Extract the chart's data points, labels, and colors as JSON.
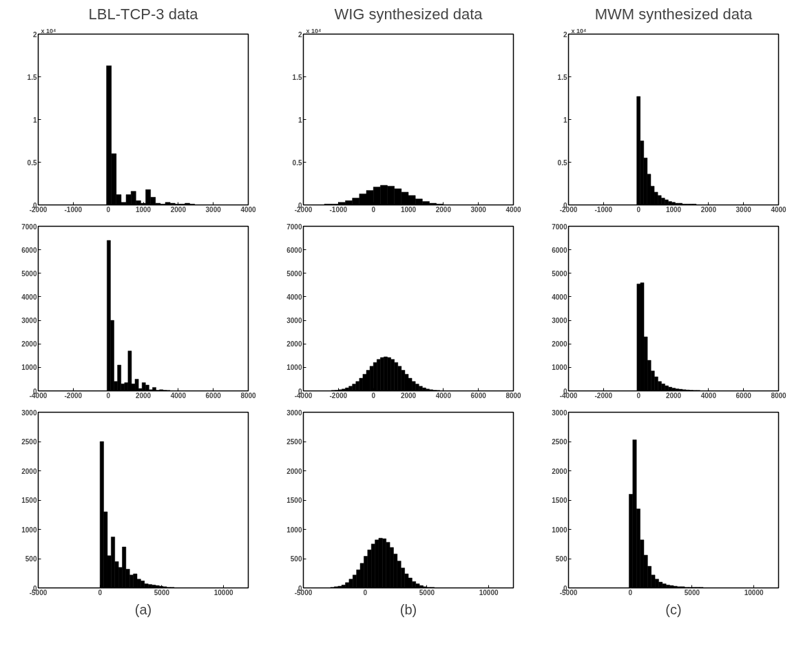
{
  "chart_data": [
    {
      "type": "histogram",
      "title": "LBL-TCP-3 data",
      "color": "#000000",
      "xlim": [
        -2000,
        4000
      ],
      "xticks": [
        -2000,
        -1000,
        0,
        1000,
        2000,
        3000,
        4000
      ],
      "ylim": [
        0,
        2
      ],
      "yticks": [
        0,
        0.5,
        1,
        1.5,
        2
      ],
      "annotations": [
        "x 10⁴"
      ],
      "bins": [
        -50,
        90,
        230,
        370,
        510,
        650,
        790,
        930,
        1070,
        1210,
        1350,
        1490,
        1630,
        1770,
        1910,
        2050,
        2190,
        2330,
        2470
      ],
      "values": [
        1.63,
        0.6,
        0.12,
        0.03,
        0.12,
        0.16,
        0.05,
        0.02,
        0.18,
        0.09,
        0.02,
        0.01,
        0.03,
        0.02,
        0.01,
        0.01,
        0.02,
        0.01
      ]
    },
    {
      "type": "histogram",
      "title": "WIG synthesized data",
      "color": "#000000",
      "xlim": [
        -2000,
        4000
      ],
      "xticks": [
        -2000,
        -1000,
        0,
        1000,
        2000,
        3000,
        4000
      ],
      "ylim": [
        0,
        2
      ],
      "yticks": [
        0,
        0.5,
        1,
        1.5,
        2
      ],
      "annotations": [
        "x 10⁴"
      ],
      "bins": [
        -1400,
        -1200,
        -1000,
        -800,
        -600,
        -400,
        -200,
        0,
        200,
        400,
        600,
        800,
        1000,
        1200,
        1400,
        1600,
        1800,
        2000,
        2200,
        2400
      ],
      "values": [
        0.01,
        0.01,
        0.03,
        0.05,
        0.08,
        0.13,
        0.17,
        0.21,
        0.23,
        0.22,
        0.19,
        0.15,
        0.11,
        0.07,
        0.04,
        0.02,
        0.01,
        0.0,
        0.0
      ]
    },
    {
      "type": "histogram",
      "title": "MWM synthesized data",
      "color": "#000000",
      "xlim": [
        -2000,
        4000
      ],
      "xticks": [
        -2000,
        -1000,
        0,
        1000,
        2000,
        3000,
        4000
      ],
      "ylim": [
        0,
        2
      ],
      "yticks": [
        0,
        0.5,
        1,
        1.5,
        2
      ],
      "annotations": [
        "x 10⁴"
      ],
      "bins": [
        -50,
        50,
        150,
        250,
        350,
        450,
        550,
        650,
        750,
        850,
        950,
        1050,
        1150,
        1250,
        1350,
        1450,
        1550,
        1650,
        1750,
        1850,
        1950,
        2050
      ],
      "values": [
        1.27,
        0.75,
        0.55,
        0.36,
        0.22,
        0.15,
        0.11,
        0.08,
        0.06,
        0.04,
        0.03,
        0.02,
        0.02,
        0.01,
        0.01,
        0.01,
        0.01,
        0.0,
        0.0,
        0.0,
        0.0
      ]
    },
    {
      "type": "histogram",
      "color": "#000000",
      "xlim": [
        -4000,
        8000
      ],
      "xticks": [
        -4000,
        -2000,
        0,
        2000,
        4000,
        6000,
        8000
      ],
      "ylim": [
        0,
        7000
      ],
      "yticks": [
        0,
        1000,
        2000,
        3000,
        4000,
        5000,
        6000,
        7000
      ],
      "bins": [
        -70,
        130,
        330,
        530,
        730,
        930,
        1130,
        1330,
        1530,
        1730,
        1930,
        2130,
        2330,
        2530,
        2730,
        2930,
        3130,
        3330,
        3530,
        3730,
        3930
      ],
      "values": [
        6400,
        3000,
        400,
        1100,
        300,
        350,
        1700,
        300,
        500,
        100,
        350,
        250,
        50,
        150,
        30,
        50,
        30,
        20,
        null,
        null
      ]
    },
    {
      "type": "histogram",
      "color": "#000000",
      "xlim": [
        -4000,
        8000
      ],
      "xticks": [
        -4000,
        -2000,
        0,
        2000,
        4000,
        6000,
        8000
      ],
      "ylim": [
        0,
        7000
      ],
      "yticks": [
        0,
        1000,
        2000,
        3000,
        4000,
        5000,
        6000,
        7000
      ],
      "bins": [
        -2400,
        -2200,
        -2000,
        -1800,
        -1600,
        -1400,
        -1200,
        -1000,
        -800,
        -600,
        -400,
        -200,
        0,
        200,
        400,
        600,
        800,
        1000,
        1200,
        1400,
        1600,
        1800,
        2000,
        2200,
        2400,
        2600,
        2800,
        3000,
        3200,
        3400,
        3600,
        3800
      ],
      "values": [
        20,
        30,
        50,
        80,
        130,
        200,
        290,
        400,
        540,
        710,
        880,
        1050,
        1210,
        1340,
        1420,
        1450,
        1420,
        1340,
        1210,
        1050,
        880,
        710,
        540,
        400,
        290,
        200,
        130,
        80,
        50,
        30,
        20
      ]
    },
    {
      "type": "histogram",
      "color": "#000000",
      "xlim": [
        -4000,
        8000
      ],
      "xticks": [
        -4000,
        -2000,
        0,
        2000,
        4000,
        6000,
        8000
      ],
      "ylim": [
        0,
        7000
      ],
      "yticks": [
        0,
        1000,
        2000,
        3000,
        4000,
        5000,
        6000,
        7000
      ],
      "bins": [
        -90,
        110,
        310,
        510,
        710,
        910,
        1110,
        1310,
        1510,
        1710,
        1910,
        2110,
        2310,
        2510,
        2710,
        2910,
        3110,
        3310,
        3510,
        3710,
        3910
      ],
      "values": [
        4550,
        4600,
        2300,
        1300,
        850,
        600,
        400,
        300,
        220,
        160,
        120,
        90,
        70,
        50,
        40,
        30,
        20,
        20,
        null,
        null
      ]
    },
    {
      "type": "histogram",
      "color": "#000000",
      "xlim": [
        -5000,
        12000
      ],
      "xticks": [
        -5000,
        0,
        5000,
        10000
      ],
      "ylim": [
        0,
        3000
      ],
      "yticks": [
        0,
        500,
        1000,
        1500,
        2000,
        2500,
        3000
      ],
      "annotations": [
        "(a)"
      ],
      "bins": [
        0,
        300,
        600,
        900,
        1200,
        1500,
        1800,
        2100,
        2400,
        2700,
        3000,
        3300,
        3600,
        3900,
        4200,
        4500,
        4800,
        5100,
        5400,
        5700,
        6000
      ],
      "values": [
        2500,
        1300,
        550,
        870,
        450,
        350,
        700,
        320,
        220,
        240,
        150,
        120,
        70,
        60,
        50,
        40,
        30,
        20,
        10,
        10
      ]
    },
    {
      "type": "histogram",
      "color": "#000000",
      "xlim": [
        -5000,
        12000
      ],
      "xticks": [
        -5000,
        0,
        5000,
        10000
      ],
      "ylim": [
        0,
        3000
      ],
      "yticks": [
        0,
        500,
        1000,
        1500,
        2000,
        2500,
        3000
      ],
      "annotations": [
        "(b)"
      ],
      "bins": [
        -2800,
        -2500,
        -2200,
        -1900,
        -1600,
        -1300,
        -1000,
        -700,
        -400,
        -100,
        200,
        500,
        800,
        1100,
        1400,
        1700,
        2000,
        2300,
        2600,
        2900,
        3200,
        3500,
        3800,
        4100,
        4400,
        4700,
        5000,
        5300,
        5600
      ],
      "values": [
        10,
        20,
        30,
        50,
        90,
        150,
        220,
        310,
        420,
        540,
        650,
        750,
        820,
        850,
        840,
        780,
        690,
        580,
        460,
        340,
        240,
        170,
        110,
        70,
        40,
        20,
        10,
        10
      ]
    },
    {
      "type": "histogram",
      "color": "#000000",
      "xlim": [
        -5000,
        12000
      ],
      "xticks": [
        -5000,
        0,
        5000,
        10000
      ],
      "ylim": [
        0,
        3000
      ],
      "yticks": [
        0,
        500,
        1000,
        1500,
        2000,
        2500,
        3000
      ],
      "annotations": [
        "(c)"
      ],
      "bins": [
        -100,
        200,
        500,
        800,
        1100,
        1400,
        1700,
        2000,
        2300,
        2600,
        2900,
        3200,
        3500,
        3800,
        4100,
        4400,
        4700,
        5000,
        5300,
        5600,
        5900
      ],
      "values": [
        1600,
        2530,
        1350,
        820,
        560,
        370,
        220,
        150,
        100,
        70,
        50,
        40,
        30,
        20,
        20,
        10,
        10,
        10,
        10,
        10
      ]
    }
  ]
}
